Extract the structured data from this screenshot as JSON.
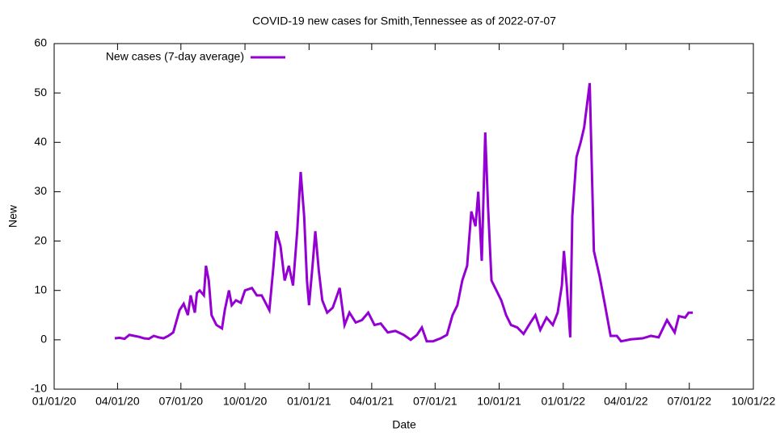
{
  "chart_data": {
    "type": "line",
    "title": "COVID-19 new cases for Smith,Tennessee as of 2022-07-07",
    "x_label": "Date",
    "y_label": "New",
    "x": [
      "2020-03-28",
      "2020-04-04",
      "2020-04-11",
      "2020-04-18",
      "2020-04-25",
      "2020-05-02",
      "2020-05-09",
      "2020-05-16",
      "2020-05-23",
      "2020-05-30",
      "2020-06-06",
      "2020-06-13",
      "2020-06-20",
      "2020-06-29",
      "2020-07-05",
      "2020-07-11",
      "2020-07-15",
      "2020-07-21",
      "2020-07-24",
      "2020-07-28",
      "2020-08-03",
      "2020-08-06",
      "2020-08-10",
      "2020-08-14",
      "2020-08-21",
      "2020-08-29",
      "2020-09-02",
      "2020-09-08",
      "2020-09-12",
      "2020-09-18",
      "2020-09-25",
      "2020-10-01",
      "2020-10-11",
      "2020-10-18",
      "2020-10-25",
      "2020-11-05",
      "2020-11-11",
      "2020-11-15",
      "2020-11-21",
      "2020-11-27",
      "2020-12-03",
      "2020-12-09",
      "2020-12-15",
      "2020-12-20",
      "2020-12-25",
      "2020-12-29",
      "2021-01-01",
      "2021-01-06",
      "2021-01-10",
      "2021-01-15",
      "2021-01-20",
      "2021-01-27",
      "2021-02-04",
      "2021-02-14",
      "2021-02-21",
      "2021-02-28",
      "2021-03-09",
      "2021-03-18",
      "2021-03-27",
      "2021-04-05",
      "2021-04-14",
      "2021-04-24",
      "2021-05-05",
      "2021-05-17",
      "2021-05-27",
      "2021-06-05",
      "2021-06-12",
      "2021-06-19",
      "2021-06-28",
      "2021-07-09",
      "2021-07-18",
      "2021-07-26",
      "2021-08-02",
      "2021-08-09",
      "2021-08-16",
      "2021-08-22",
      "2021-08-28",
      "2021-09-01",
      "2021-09-06",
      "2021-09-11",
      "2021-09-15",
      "2021-09-20",
      "2021-09-27",
      "2021-10-04",
      "2021-10-11",
      "2021-10-18",
      "2021-10-27",
      "2021-11-05",
      "2021-11-15",
      "2021-11-22",
      "2021-11-29",
      "2021-12-08",
      "2021-12-17",
      "2021-12-24",
      "2021-12-30",
      "2022-01-02",
      "2022-01-06",
      "2022-01-11",
      "2022-01-14",
      "2022-01-20",
      "2022-01-26",
      "2022-01-31",
      "2022-02-08",
      "2022-02-14",
      "2022-02-22",
      "2022-03-02",
      "2022-03-10",
      "2022-03-19",
      "2022-03-25",
      "2022-04-08",
      "2022-04-25",
      "2022-05-07",
      "2022-05-18",
      "2022-05-30",
      "2022-06-10",
      "2022-06-16",
      "2022-06-25",
      "2022-06-30",
      "2022-07-06"
    ],
    "series": [
      {
        "name": "New cases (7-day average)",
        "color": "#9400d3",
        "values": [
          0.3,
          0.4,
          0.2,
          1.0,
          0.8,
          0.6,
          0.3,
          0.2,
          0.8,
          0.5,
          0.3,
          0.8,
          1.5,
          6,
          7.3,
          5,
          9,
          5.5,
          9.5,
          10,
          9,
          15,
          12,
          5,
          3,
          2.3,
          6,
          10,
          7,
          8,
          7.5,
          10,
          10.5,
          9,
          9,
          6,
          15,
          22,
          19,
          12,
          15,
          11,
          22,
          34,
          25,
          12,
          7,
          15,
          22,
          14,
          8,
          5.5,
          6.5,
          10.5,
          3,
          5.5,
          3.5,
          4,
          5.5,
          3,
          3.3,
          1.5,
          1.8,
          1,
          0,
          1,
          2.5,
          -0.3,
          -0.3,
          0.3,
          1,
          5,
          7,
          12,
          15,
          26,
          23,
          30,
          16,
          42,
          27,
          12,
          10,
          8,
          5,
          3,
          2.5,
          1.2,
          3.5,
          5,
          2,
          4.5,
          3,
          5.5,
          11,
          18,
          11,
          0.5,
          25,
          37,
          40,
          43,
          52,
          18,
          13,
          7,
          0.8,
          0.8,
          -0.3,
          0.1,
          0.3,
          0.8,
          0.5,
          4,
          1.5,
          4.8,
          4.5,
          5.5,
          5.5
        ]
      }
    ],
    "xlim": [
      "2020-01-01",
      "2022-10-01"
    ],
    "xticks": [
      {
        "value": "2020-01-01",
        "label": "01/01/20"
      },
      {
        "value": "2020-04-01",
        "label": "04/01/20"
      },
      {
        "value": "2020-07-01",
        "label": "07/01/20"
      },
      {
        "value": "2020-10-01",
        "label": "10/01/20"
      },
      {
        "value": "2021-01-01",
        "label": "01/01/21"
      },
      {
        "value": "2021-04-01",
        "label": "04/01/21"
      },
      {
        "value": "2021-07-01",
        "label": "07/01/21"
      },
      {
        "value": "2021-10-01",
        "label": "10/01/21"
      },
      {
        "value": "2022-01-01",
        "label": "01/01/22"
      },
      {
        "value": "2022-04-01",
        "label": "04/01/22"
      },
      {
        "value": "2022-07-01",
        "label": "07/01/22"
      },
      {
        "value": "2022-10-01",
        "label": "10/01/22"
      }
    ],
    "ylim": [
      -10,
      60
    ],
    "yticks": [
      -10,
      0,
      10,
      20,
      30,
      40,
      50,
      60
    ],
    "legend": "top left"
  }
}
